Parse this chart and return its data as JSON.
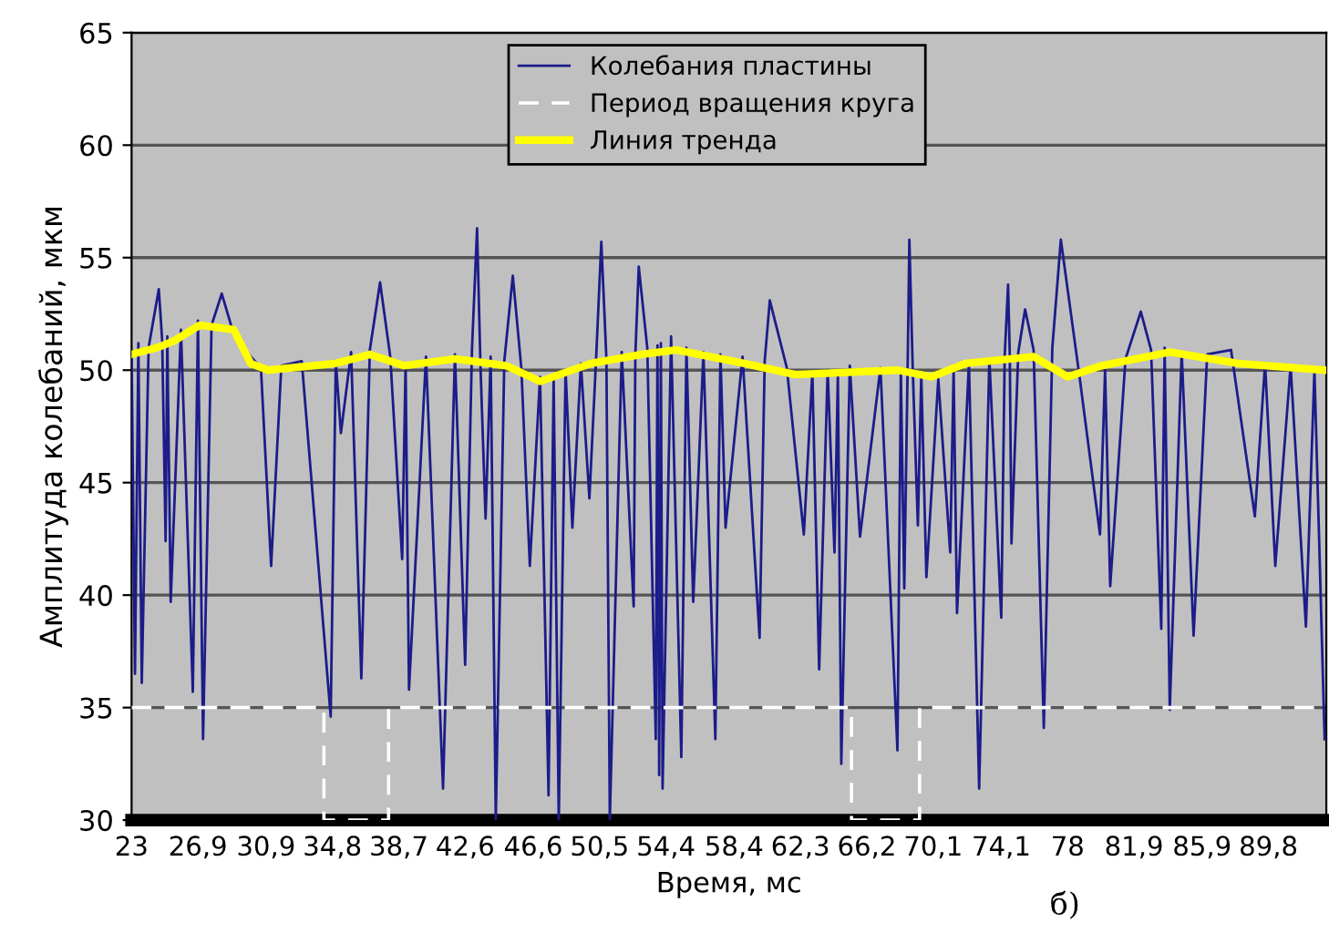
{
  "chart_data": {
    "type": "line",
    "xlabel": "Время, мс",
    "ylabel": "Амплитуда колебаний, мкм",
    "annotations": [
      "б)"
    ],
    "xlim": [
      23,
      93.2
    ],
    "ylim": [
      30,
      65
    ],
    "xticks": [
      23,
      {
        "value": 26.9,
        "label": "26,9"
      },
      {
        "value": 30.9,
        "label": "30,9"
      },
      {
        "value": 34.8,
        "label": "34,8"
      },
      {
        "value": 38.7,
        "label": "38,7"
      },
      {
        "value": 42.6,
        "label": "42,6"
      },
      {
        "value": 46.6,
        "label": "46,6"
      },
      {
        "value": 50.5,
        "label": "50,5"
      },
      {
        "value": 54.4,
        "label": "54,4"
      },
      {
        "value": 58.4,
        "label": "58,4"
      },
      {
        "value": 62.3,
        "label": "62,3"
      },
      {
        "value": 66.2,
        "label": "66,2"
      },
      {
        "value": 70.1,
        "label": "70,1"
      },
      {
        "value": 74.1,
        "label": "74,1"
      },
      78,
      {
        "value": 81.9,
        "label": "81,9"
      },
      {
        "value": 85.9,
        "label": "85,9"
      },
      {
        "value": 89.8,
        "label": "89,8"
      }
    ],
    "yticks": [
      30,
      35,
      40,
      45,
      50,
      55,
      60,
      65
    ],
    "grid": "y",
    "legend": "top",
    "series": [
      {
        "name": "Колебания пластины",
        "color": "#1c1c8a",
        "x": [
          23.0,
          23.2,
          23.4,
          23.6,
          24.0,
          24.6,
          24.8,
          25.0,
          25.1,
          25.3,
          25.9,
          26.6,
          26.9,
          27.2,
          27.7,
          28.3,
          29.0,
          30.0,
          30.6,
          31.2,
          31.8,
          33.0,
          34.7,
          35.0,
          35.3,
          35.9,
          36.5,
          37.0,
          37.6,
          38.2,
          38.9,
          39.1,
          39.3,
          40.3,
          41.3,
          42.0,
          42.6,
          43.0,
          43.3,
          43.5,
          43.8,
          44.1,
          44.4,
          44.9,
          45.4,
          45.9,
          46.4,
          47.0,
          47.5,
          47.8,
          48.1,
          48.5,
          48.9,
          49.4,
          49.9,
          50.3,
          50.6,
          50.9,
          51.1,
          51.8,
          52.5,
          52.6,
          52.8,
          53.3,
          53.8,
          53.9,
          54.0,
          54.1,
          54.2,
          54.7,
          55.3,
          55.6,
          56.0,
          56.6,
          57.3,
          57.6,
          57.9,
          58.9,
          59.9,
          60.2,
          60.5,
          61.5,
          62.5,
          63.0,
          63.4,
          63.9,
          64.3,
          64.5,
          64.7,
          65.2,
          65.8,
          67.0,
          68.0,
          68.2,
          68.4,
          68.6,
          68.7,
          68.9,
          69.2,
          69.4,
          69.7,
          70.4,
          71.1,
          71.3,
          71.5,
          72.2,
          72.8,
          73.4,
          74.1,
          74.3,
          74.5,
          74.6,
          74.7,
          75.1,
          75.5,
          76.0,
          76.6,
          77.1,
          77.6,
          78.7,
          79.9,
          80.2,
          80.5,
          81.4,
          82.3,
          82.9,
          83.5,
          83.7,
          84.0,
          84.7,
          85.4,
          86.2,
          87.6,
          89.0,
          89.6,
          90.2,
          91.1,
          92.0,
          92.5,
          93.1
        ],
        "values": [
          50.9,
          36.5,
          51.2,
          36.1,
          51.0,
          53.6,
          51.3,
          42.4,
          51.5,
          39.7,
          51.8,
          35.7,
          52.2,
          33.6,
          52.0,
          53.4,
          51.6,
          50.6,
          50.1,
          41.3,
          50.2,
          50.4,
          34.6,
          50.4,
          47.2,
          50.8,
          36.3,
          50.9,
          53.9,
          50.6,
          41.6,
          50.3,
          35.8,
          50.6,
          31.4,
          50.7,
          36.9,
          50.9,
          56.3,
          50.2,
          43.4,
          50.6,
          30.0,
          50.4,
          54.2,
          50.1,
          41.3,
          49.7,
          31.1,
          49.6,
          30.0,
          50.0,
          43.0,
          50.3,
          44.3,
          50.6,
          55.7,
          50.5,
          30.0,
          50.8,
          39.5,
          50.7,
          54.6,
          51.0,
          33.6,
          51.1,
          32.0,
          51.2,
          31.4,
          51.5,
          32.8,
          51.0,
          39.7,
          50.8,
          33.6,
          50.7,
          43.0,
          50.6,
          38.1,
          50.4,
          53.1,
          50.1,
          42.7,
          49.9,
          36.7,
          50.0,
          41.9,
          49.8,
          32.5,
          50.2,
          42.6,
          50.1,
          33.1,
          49.9,
          40.3,
          50.2,
          55.8,
          50.0,
          43.1,
          49.8,
          40.8,
          49.6,
          41.9,
          50.0,
          39.2,
          50.3,
          31.4,
          50.5,
          39.0,
          50.6,
          53.8,
          50.7,
          42.3,
          50.8,
          52.7,
          50.9,
          34.1,
          51.0,
          55.8,
          49.7,
          42.7,
          50.0,
          40.4,
          50.5,
          52.6,
          50.9,
          38.5,
          51.0,
          34.9,
          50.8,
          38.2,
          50.7,
          50.9,
          43.5,
          50.3,
          41.3,
          50.2,
          38.6,
          50.0,
          33.6
        ]
      },
      {
        "name": "Период вращения круга",
        "color": "#ffffff",
        "line_style": "dashed",
        "x": [
          23,
          34.3,
          34.3,
          38.1,
          38.1,
          65.3,
          65.3,
          69.3,
          69.3,
          93.2
        ],
        "values": [
          35,
          35,
          30,
          30,
          35,
          35,
          30,
          30,
          35,
          35
        ]
      },
      {
        "name": "Линия тренда",
        "color": "#ffff00",
        "x": [
          23,
          24.5,
          25.5,
          27,
          29,
          30,
          31,
          35,
          37,
          39,
          42,
          45,
          47,
          50,
          53,
          55,
          59,
          62,
          68,
          70,
          72,
          76,
          78,
          80,
          84,
          88,
          93.1
        ],
        "values": [
          50.7,
          51.0,
          51.3,
          52.0,
          51.8,
          50.3,
          50.0,
          50.3,
          50.7,
          50.2,
          50.5,
          50.2,
          49.5,
          50.3,
          50.7,
          50.9,
          50.3,
          49.8,
          50.0,
          49.7,
          50.3,
          50.6,
          49.7,
          50.2,
          50.8,
          50.3,
          50.0
        ]
      }
    ]
  }
}
